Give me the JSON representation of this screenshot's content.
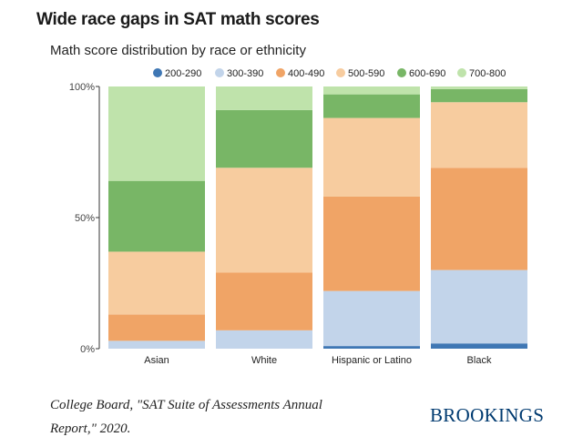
{
  "title": "Wide race gaps in SAT math scores",
  "subtitle": "Math score distribution by race or ethnicity",
  "source_line1": "College Board, \"SAT Suite of Assessments Annual",
  "source_line2": "Report,\" 2020.",
  "brand": "BROOKINGS",
  "colors": {
    "200-290": "#3f77b4",
    "300-390": "#c2d4ea",
    "400-490": "#f0a466",
    "500-590": "#f7cc9f",
    "600-690": "#78b666",
    "700-800": "#bfe3ab"
  },
  "chart_data": {
    "type": "bar",
    "stacked": true,
    "normalized": true,
    "title": "Wide race gaps in SAT math scores",
    "subtitle": "Math score distribution by race or ethnicity",
    "xlabel": "",
    "ylabel": "",
    "ylim": [
      0,
      100
    ],
    "yticks": [
      {
        "value": 0,
        "label": "0%"
      },
      {
        "value": 50,
        "label": "50%"
      },
      {
        "value": 100,
        "label": "100%"
      }
    ],
    "legend_position": "top",
    "categories": [
      "Asian",
      "White",
      "Hispanic or Latino",
      "Black"
    ],
    "series": [
      {
        "name": "200-290",
        "values": [
          0,
          0,
          1,
          2
        ]
      },
      {
        "name": "300-390",
        "values": [
          3,
          7,
          21,
          28
        ]
      },
      {
        "name": "400-490",
        "values": [
          10,
          22,
          36,
          39
        ]
      },
      {
        "name": "500-590",
        "values": [
          24,
          40,
          30,
          25
        ]
      },
      {
        "name": "600-690",
        "values": [
          27,
          22,
          9,
          5
        ]
      },
      {
        "name": "700-800",
        "values": [
          36,
          9,
          3,
          1
        ]
      }
    ]
  }
}
